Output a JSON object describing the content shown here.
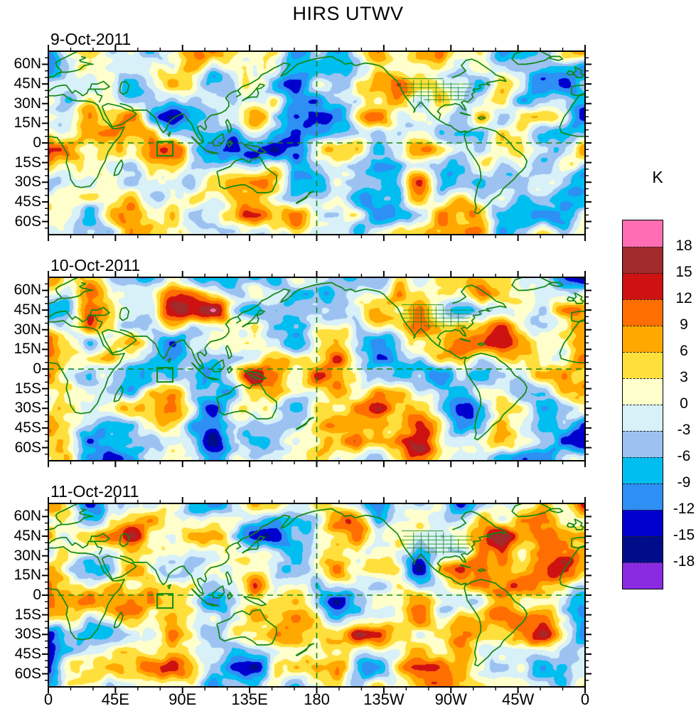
{
  "title": "HIRS UTWV",
  "chart_data": {
    "type": "heatmap",
    "variant": "filled-contour global anomaly maps, 3 stacked panels",
    "field": "HIRS upper-tropospheric water vapor anomaly",
    "unit": "K",
    "panels": [
      {
        "label": "9-Oct-2011"
      },
      {
        "label": "10-Oct-2011"
      },
      {
        "label": "11-Oct-2011"
      }
    ],
    "x_axis": {
      "tick_labels": [
        "0",
        "45E",
        "90E",
        "135E",
        "180",
        "135W",
        "90W",
        "45W",
        "0"
      ],
      "major_tick_interval_deg": 45,
      "minor_tick_interval_deg": 15,
      "lon_range": [
        0,
        360
      ]
    },
    "y_axis": {
      "tick_labels": [
        "60N",
        "45N",
        "30N",
        "15N",
        "0",
        "15S",
        "30S",
        "45S",
        "60S"
      ],
      "major_tick_interval_deg": 15,
      "minor_tick_interval_deg": 5,
      "lat_range": [
        -70,
        70
      ]
    },
    "colorbar": {
      "unit_label": "K",
      "tick_labels": [
        "18",
        "15",
        "12",
        "9",
        "6",
        "3",
        "0",
        "-3",
        "-6",
        "-9",
        "-12",
        "-15",
        "-18"
      ],
      "levels_k": [
        18,
        15,
        12,
        9,
        6,
        3,
        0,
        -3,
        -6,
        -9,
        -12,
        -15,
        -18
      ],
      "colors_top_to_bottom": [
        "#ff6eb4",
        "#a12a2a",
        "#ce1212",
        "#ff6e00",
        "#ffa800",
        "#ffdf3c",
        "#ffffcc",
        "#d8f0f8",
        "#9cc2f2",
        "#00bef0",
        "#2e8ff5",
        "#0000ce",
        "#000d8b",
        "#8a2be2"
      ]
    },
    "overlay": {
      "coastline_color": "#118811",
      "gridlines": "dashed green lines at the equator and the 180 meridian",
      "region_box": "small green rectangle near 75E, 2S in each panel"
    }
  }
}
